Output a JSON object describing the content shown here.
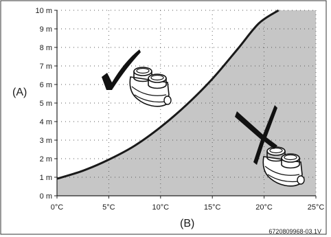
{
  "chart_data": {
    "type": "area",
    "title": "",
    "x_axis_label": "(B)",
    "y_axis_label": "(A)",
    "x_ticks": [
      "0°C",
      "5°C",
      "10°C",
      "15°C",
      "20°C",
      "25°C"
    ],
    "x_tick_values": [
      0,
      5,
      10,
      15,
      20,
      25
    ],
    "y_ticks": [
      "0 m",
      "1 m",
      "2 m",
      "3 m",
      "4 m",
      "5 m",
      "6 m",
      "7 m",
      "8 m",
      "9 m",
      "10 m"
    ],
    "y_tick_values": [
      0,
      1,
      2,
      3,
      4,
      5,
      6,
      7,
      8,
      9,
      10
    ],
    "xlim": [
      0,
      25
    ],
    "ylim": [
      0,
      10
    ],
    "grid": "dotted",
    "boundary_curve": {
      "x": [
        0,
        2.5,
        5,
        7.5,
        10,
        12.5,
        15,
        17.5,
        19.5,
        21.4
      ],
      "y": [
        0.92,
        1.35,
        1.95,
        2.7,
        3.7,
        4.9,
        6.3,
        7.95,
        9.3,
        10.0
      ]
    },
    "regions": {
      "above_curve": {
        "fill": "#ffffff",
        "marker": "check",
        "icon": "flue-adapter-icon"
      },
      "below_curve": {
        "fill": "#c6c6c6",
        "marker": "cross",
        "icon": "flue-adapter-icon"
      }
    },
    "curve_color": "#1a1a1a"
  },
  "reference_code": "6720809968-03.1V"
}
